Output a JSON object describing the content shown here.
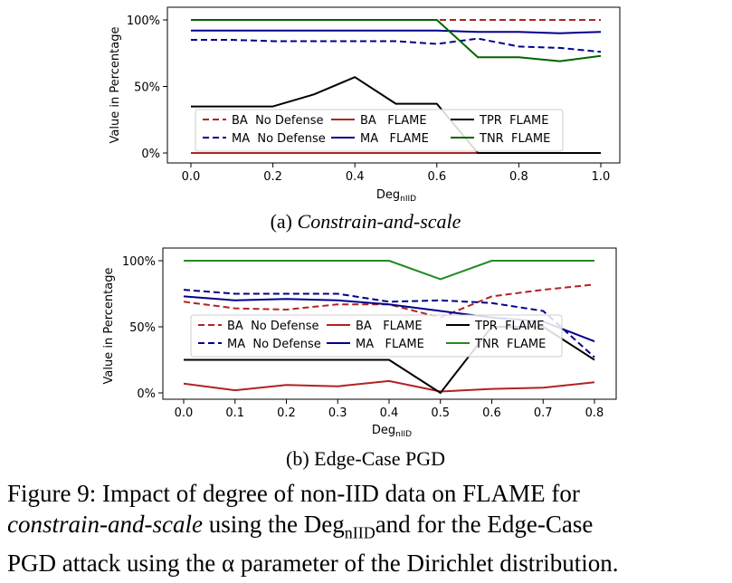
{
  "charts": [
    {
      "id": "a",
      "caption_prefix": "(a) ",
      "caption_title": "Constrain-and-scale",
      "ylabel": "Value in Percentage",
      "xlabel_main": "Deg",
      "xlabel_sub": "nIID",
      "x_ticks": [
        "0.0",
        "0.2",
        "0.4",
        "0.6",
        "0.8",
        "1.0"
      ],
      "y_ticks": [
        "0%",
        "50%",
        "100%"
      ],
      "legend": [
        "BA  No Defense",
        "BA   FLAME",
        "TPR  FLAME",
        "MA  No Defense",
        "MA   FLAME",
        "TNR  FLAME"
      ]
    },
    {
      "id": "b",
      "caption_prefix": "(b) ",
      "caption_title": "Edge-Case PGD",
      "ylabel": "Value in Percentage",
      "xlabel_main": "Deg",
      "xlabel_sub": "nIID",
      "x_ticks": [
        "0.0",
        "0.1",
        "0.2",
        "0.3",
        "0.4",
        "0.5",
        "0.6",
        "0.7",
        "0.8"
      ],
      "y_ticks": [
        "0%",
        "50%",
        "100%"
      ],
      "legend": [
        "BA  No Defense",
        "BA   FLAME",
        "TPR  FLAME",
        "MA  No Defense",
        "MA   FLAME",
        "TNR  FLAME"
      ]
    }
  ],
  "chart_data": [
    {
      "type": "line",
      "xlabel": "DegnIID",
      "ylabel": "Value in Percentage",
      "xlim": [
        0,
        1.0
      ],
      "ylim": [
        0,
        100
      ],
      "grid": false,
      "legend_position": "lower-center",
      "series": [
        {
          "name": "BA No Defense",
          "color": "#b22222",
          "dash": true,
          "x": [
            0,
            0.1,
            0.2,
            0.3,
            0.4,
            0.5,
            0.6,
            0.7,
            0.8,
            0.9,
            1.0
          ],
          "y": [
            100,
            100,
            100,
            100,
            100,
            100,
            100,
            100,
            100,
            100,
            100
          ]
        },
        {
          "name": "MA No Defense",
          "color": "#00008b",
          "dash": true,
          "x": [
            0,
            0.1,
            0.2,
            0.3,
            0.4,
            0.5,
            0.6,
            0.7,
            0.8,
            0.9,
            1.0
          ],
          "y": [
            85,
            85,
            84,
            84,
            84,
            84,
            82,
            86,
            80,
            79,
            76
          ]
        },
        {
          "name": "BA FLAME",
          "color": "#b22222",
          "dash": false,
          "x": [
            0,
            0.1,
            0.2,
            0.3,
            0.4,
            0.5,
            0.6,
            0.7,
            0.8,
            0.9,
            1.0
          ],
          "y": [
            0,
            0,
            0,
            0,
            0,
            0,
            0,
            0,
            0,
            0,
            0
          ]
        },
        {
          "name": "MA FLAME",
          "color": "#00008b",
          "dash": false,
          "x": [
            0,
            0.1,
            0.2,
            0.3,
            0.4,
            0.5,
            0.6,
            0.7,
            0.8,
            0.9,
            1.0
          ],
          "y": [
            92,
            92,
            92,
            92,
            92,
            92,
            92,
            91,
            91,
            90,
            91
          ]
        },
        {
          "name": "TPR FLAME",
          "color": "#000000",
          "dash": false,
          "x": [
            0,
            0.1,
            0.2,
            0.3,
            0.4,
            0.5,
            0.6,
            0.7,
            0.8,
            0.9,
            1.0
          ],
          "y": [
            35,
            35,
            35,
            44,
            57,
            37,
            37,
            0,
            0,
            0,
            0
          ]
        },
        {
          "name": "TNR FLAME",
          "color": "#006400",
          "dash": false,
          "x": [
            0,
            0.1,
            0.2,
            0.3,
            0.4,
            0.5,
            0.6,
            0.7,
            0.8,
            0.9,
            1.0
          ],
          "y": [
            100,
            100,
            100,
            100,
            100,
            100,
            100,
            72,
            72,
            69,
            73
          ]
        }
      ]
    },
    {
      "type": "line",
      "xlabel": "DegnIID",
      "ylabel": "Value in Percentage",
      "xlim": [
        0,
        0.8
      ],
      "ylim": [
        0,
        100
      ],
      "grid": false,
      "legend_position": "center",
      "series": [
        {
          "name": "BA No Defense",
          "color": "#b22222",
          "dash": true,
          "x": [
            0,
            0.1,
            0.2,
            0.3,
            0.4,
            0.5,
            0.6,
            0.7,
            0.8
          ],
          "y": [
            69,
            64,
            63,
            67,
            67,
            57,
            73,
            78,
            82
          ]
        },
        {
          "name": "MA No Defense",
          "color": "#00008b",
          "dash": true,
          "x": [
            0,
            0.1,
            0.2,
            0.3,
            0.4,
            0.5,
            0.6,
            0.7,
            0.8
          ],
          "y": [
            78,
            75,
            75,
            75,
            69,
            70,
            68,
            62,
            27
          ]
        },
        {
          "name": "BA FLAME",
          "color": "#b22222",
          "dash": false,
          "x": [
            0,
            0.1,
            0.2,
            0.3,
            0.4,
            0.5,
            0.6,
            0.7,
            0.8
          ],
          "y": [
            7,
            2,
            6,
            5,
            9,
            1,
            3,
            4,
            8
          ]
        },
        {
          "name": "MA FLAME",
          "color": "#00008b",
          "dash": false,
          "x": [
            0,
            0.1,
            0.2,
            0.3,
            0.4,
            0.5,
            0.6,
            0.7,
            0.8
          ],
          "y": [
            73,
            70,
            71,
            70,
            67,
            62,
            57,
            54,
            39
          ]
        },
        {
          "name": "TPR FLAME",
          "color": "#000000",
          "dash": false,
          "x": [
            0,
            0.1,
            0.2,
            0.3,
            0.4,
            0.5,
            0.6,
            0.7,
            0.8
          ],
          "y": [
            25,
            25,
            25,
            25,
            25,
            0,
            50,
            50,
            25
          ]
        },
        {
          "name": "TNR FLAME",
          "color": "#228b22",
          "dash": false,
          "x": [
            0,
            0.1,
            0.2,
            0.3,
            0.4,
            0.5,
            0.6,
            0.7,
            0.8
          ],
          "y": [
            100,
            100,
            100,
            100,
            100,
            86,
            100,
            100,
            100
          ]
        }
      ]
    }
  ],
  "figure_caption": {
    "line1": "Figure 9: Impact of degree of non-IID data on FLAME for",
    "line2_italic": "constrain-and-scale",
    "line2_mid": " using the Deg",
    "line2_sub": "nIID",
    "line2_end": "and for the Edge-Case",
    "line3_start": "PGD attack using the ",
    "line3_alpha": "α",
    "line3_end": " parameter of the Dirichlet distribution."
  }
}
